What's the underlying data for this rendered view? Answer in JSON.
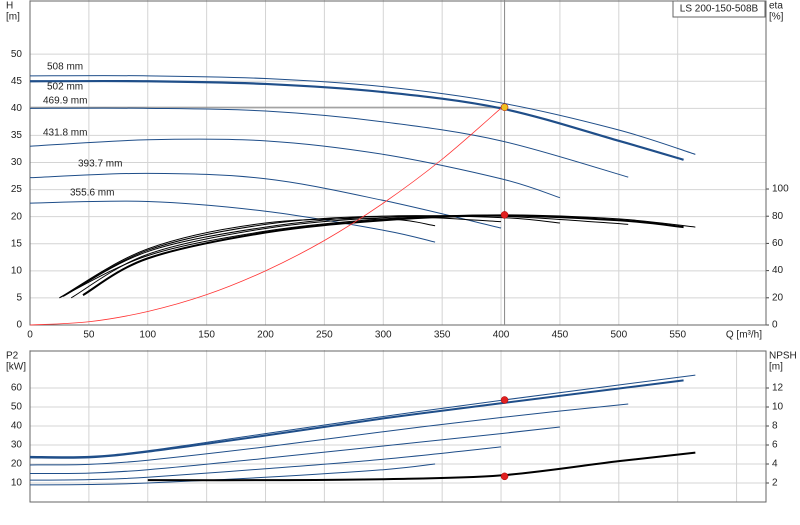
{
  "chart_data": [
    {
      "type": "line",
      "title": "LS 200-150-508B",
      "y_label": "H",
      "y_unit": "[m]",
      "y2_label": "eta",
      "y2_unit": "[%]",
      "x_label": "Q [m³/h]",
      "xlim": [
        0,
        625
      ],
      "xticks": [
        0,
        50,
        100,
        150,
        200,
        250,
        300,
        350,
        400,
        450,
        500,
        550
      ],
      "ylim": [
        0,
        60
      ],
      "yticks": [
        0,
        5,
        10,
        15,
        20,
        25,
        30,
        35,
        40,
        45,
        50
      ],
      "y2lim": [
        0,
        239
      ],
      "y2ticks": [
        0,
        20,
        40,
        60,
        80,
        100
      ],
      "grid": true,
      "series": [
        {
          "name": "508 mm",
          "color": "#1f4e89",
          "line_width": 1,
          "x": [
            0,
            100,
            200,
            300,
            400,
            500,
            565
          ],
          "values": [
            46,
            46,
            45.5,
            44,
            41,
            36,
            31.5
          ]
        },
        {
          "name": "502 mm",
          "color": "#1f4e89",
          "line_width": 2.2,
          "x": [
            0,
            100,
            200,
            300,
            400,
            500,
            555
          ],
          "values": [
            45,
            45,
            44.5,
            43,
            40,
            34,
            30.5
          ]
        },
        {
          "name": "469.9 mm",
          "color": "#1f4e89",
          "line_width": 1,
          "x": [
            0,
            100,
            200,
            300,
            400,
            508
          ],
          "values": [
            40,
            40,
            39.5,
            37.5,
            34,
            27.3
          ]
        },
        {
          "name": "431.8 mm",
          "color": "#1f4e89",
          "line_width": 1,
          "x": [
            0,
            100,
            200,
            300,
            400,
            450
          ],
          "values": [
            33,
            34.2,
            34,
            31.5,
            27,
            23.5
          ]
        },
        {
          "name": "393.7 mm",
          "color": "#1f4e89",
          "line_width": 1,
          "x": [
            0,
            100,
            200,
            300,
            400
          ],
          "values": [
            27.2,
            28,
            27,
            23,
            17.9
          ]
        },
        {
          "name": "355.6 mm",
          "color": "#1f4e89",
          "line_width": 1,
          "x": [
            0,
            100,
            200,
            300,
            344
          ],
          "values": [
            22.5,
            22.8,
            21,
            17.5,
            15.3
          ]
        },
        {
          "color": "#000000",
          "line_width": 1,
          "axis": "y2",
          "x": [
            25,
            100,
            200,
            300,
            400,
            500,
            565
          ],
          "values": [
            20,
            51,
            69,
            78,
            81,
            78,
            72
          ]
        },
        {
          "color": "#000000",
          "line_width": 2,
          "axis": "y2",
          "x": [
            45,
            100,
            200,
            300,
            400,
            500,
            555
          ],
          "values": [
            22,
            49,
            68,
            77,
            80.5,
            77,
            72
          ]
        },
        {
          "color": "#000000",
          "line_width": 1,
          "axis": "y2",
          "x": [
            35,
            100,
            200,
            300,
            400,
            508
          ],
          "values": [
            20,
            52,
            71,
            79,
            80,
            74
          ]
        },
        {
          "color": "#000000",
          "line_width": 1,
          "axis": "y2",
          "x": [
            30,
            100,
            200,
            300,
            400,
            450
          ],
          "values": [
            22,
            54,
            72,
            80,
            79,
            75
          ]
        },
        {
          "color": "#000000",
          "line_width": 1,
          "axis": "y2",
          "x": [
            28,
            100,
            200,
            300,
            400
          ],
          "values": [
            21,
            55,
            74,
            80,
            76
          ]
        },
        {
          "color": "#000000",
          "line_width": 1,
          "axis": "y2",
          "x": [
            25,
            100,
            200,
            300,
            344
          ],
          "values": [
            20,
            56,
            75,
            78,
            73
          ]
        },
        {
          "color": "#ff3333",
          "line_width": 0.8,
          "x": [
            0,
            50,
            100,
            150,
            200,
            250,
            300,
            350,
            403
          ],
          "values": [
            0,
            0.6,
            2.5,
            5.6,
            10,
            15.6,
            22.5,
            30.6,
            40.6
          ]
        }
      ],
      "markers": [
        {
          "x": 403,
          "y": 40.2,
          "color": "#f0c020"
        },
        {
          "x": 403,
          "y": 81,
          "color": "#e02020",
          "axis": "y2"
        }
      ]
    },
    {
      "type": "line",
      "y_label": "P2",
      "y_unit": "[kW]",
      "y2_label": "NPSH",
      "y2_unit": "[m]",
      "xlim": [
        0,
        625
      ],
      "xticks": [
        0,
        50,
        100,
        150,
        200,
        250,
        300,
        350,
        400,
        450,
        500,
        550,
        600
      ],
      "ylim": [
        0,
        80
      ],
      "yticks": [
        10,
        20,
        30,
        40,
        50,
        60
      ],
      "y2lim": [
        0,
        16
      ],
      "y2ticks": [
        2,
        4,
        6,
        8,
        10,
        12
      ],
      "grid": true,
      "series": [
        {
          "color": "#1f4e89",
          "line_width": 1,
          "x": [
            0,
            50,
            100,
            200,
            300,
            400,
            565
          ],
          "values": [
            24,
            24,
            27,
            36,
            45,
            53.5,
            66.8
          ]
        },
        {
          "color": "#1f4e89",
          "line_width": 2,
          "x": [
            0,
            50,
            100,
            200,
            300,
            400,
            555
          ],
          "values": [
            23.5,
            23.5,
            26.5,
            35,
            44,
            52,
            64
          ]
        },
        {
          "color": "#1f4e89",
          "line_width": 1,
          "x": [
            0,
            50,
            100,
            200,
            300,
            400,
            508
          ],
          "values": [
            19.5,
            19.8,
            22,
            29,
            37,
            44.5,
            51.6
          ]
        },
        {
          "color": "#1f4e89",
          "line_width": 1,
          "x": [
            0,
            50,
            100,
            200,
            300,
            400,
            450
          ],
          "values": [
            15,
            15.2,
            17,
            23,
            29.5,
            36,
            39.5
          ]
        },
        {
          "color": "#1f4e89",
          "line_width": 1,
          "x": [
            0,
            50,
            100,
            200,
            300,
            400
          ],
          "values": [
            11.5,
            11.8,
            13,
            17.5,
            22.5,
            29
          ]
        },
        {
          "color": "#1f4e89",
          "line_width": 1,
          "x": [
            0,
            50,
            100,
            200,
            300,
            344
          ],
          "values": [
            9,
            9.2,
            10,
            13,
            17,
            20
          ]
        },
        {
          "color": "#000000",
          "line_width": 2,
          "axis": "y2",
          "x": [
            100,
            200,
            300,
            400,
            500,
            565
          ],
          "values": [
            2.3,
            2.3,
            2.4,
            2.8,
            4.3,
            5.2
          ]
        }
      ],
      "markers": [
        {
          "x": 403,
          "y": 53.7,
          "color": "#e02020"
        },
        {
          "x": 403,
          "y": 2.7,
          "color": "#e02020",
          "axis": "y2"
        }
      ]
    }
  ]
}
